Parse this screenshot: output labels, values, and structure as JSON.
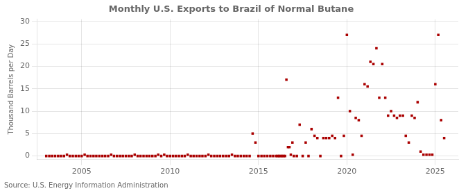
{
  "chart_data": {
    "type": "scatter",
    "title": "Monthly U.S. Exports to Brazil of Normal Butane",
    "ylabel": "Thousand Barrels per Day",
    "source": "Source: U.S. Energy Information Administration",
    "color": "#aa0000",
    "marker": "square",
    "grid": true,
    "xlim": [
      2002.5,
      2026.3
    ],
    "ylim": [
      -0.8,
      30.5
    ],
    "xticks": [
      2005,
      2010,
      2015,
      2020,
      2025
    ],
    "yticks": [
      0,
      5,
      10,
      15,
      20,
      25,
      30
    ],
    "x": [
      2003.0,
      2003.17,
      2003.33,
      2003.5,
      2003.67,
      2003.83,
      2004.0,
      2004.17,
      2004.33,
      2004.5,
      2004.67,
      2004.83,
      2005.0,
      2005.17,
      2005.33,
      2005.5,
      2005.67,
      2005.83,
      2006.0,
      2006.17,
      2006.33,
      2006.5,
      2006.67,
      2006.83,
      2007.0,
      2007.17,
      2007.33,
      2007.5,
      2007.67,
      2007.83,
      2008.0,
      2008.17,
      2008.33,
      2008.5,
      2008.67,
      2008.83,
      2009.0,
      2009.17,
      2009.33,
      2009.5,
      2009.67,
      2009.83,
      2010.0,
      2010.17,
      2010.33,
      2010.5,
      2010.67,
      2010.83,
      2011.0,
      2011.17,
      2011.33,
      2011.5,
      2011.67,
      2011.83,
      2012.0,
      2012.17,
      2012.33,
      2012.5,
      2012.67,
      2012.83,
      2013.0,
      2013.17,
      2013.33,
      2013.5,
      2013.67,
      2013.83,
      2014.0,
      2014.17,
      2014.33,
      2014.5,
      2014.67,
      2014.83,
      2015.0,
      2015.17,
      2015.33,
      2015.5,
      2015.67,
      2015.83,
      2016.0,
      2016.08,
      2016.17,
      2016.25,
      2016.33,
      2016.42,
      2016.5,
      2016.58,
      2016.67,
      2016.75,
      2016.83,
      2016.92,
      2017.0,
      2017.17,
      2017.33,
      2017.5,
      2017.67,
      2017.83,
      2018.0,
      2018.17,
      2018.33,
      2018.5,
      2018.67,
      2018.83,
      2019.0,
      2019.17,
      2019.33,
      2019.5,
      2019.67,
      2019.83,
      2020.0,
      2020.17,
      2020.33,
      2020.5,
      2020.67,
      2020.83,
      2021.0,
      2021.17,
      2021.33,
      2021.5,
      2021.67,
      2021.83,
      2022.0,
      2022.17,
      2022.33,
      2022.5,
      2022.67,
      2022.83,
      2023.0,
      2023.17,
      2023.33,
      2023.5,
      2023.67,
      2023.83,
      2024.0,
      2024.17,
      2024.33,
      2024.5,
      2024.67,
      2024.83,
      2025.0,
      2025.17,
      2025.33,
      2025.5
    ],
    "values": [
      0.0,
      0.0,
      0.0,
      0.0,
      0.0,
      0.0,
      0.0,
      0.3,
      0.0,
      0.0,
      0.0,
      0.0,
      0.0,
      0.3,
      0.0,
      0.0,
      0.0,
      0.0,
      0.0,
      0.0,
      0.0,
      0.0,
      0.3,
      0.0,
      0.0,
      0.0,
      0.0,
      0.0,
      0.0,
      0.0,
      0.3,
      0.0,
      0.0,
      0.0,
      0.0,
      0.0,
      0.0,
      0.0,
      0.3,
      0.0,
      0.3,
      0.0,
      0.0,
      0.0,
      0.0,
      0.0,
      0.0,
      0.0,
      0.3,
      0.0,
      0.0,
      0.0,
      0.0,
      0.0,
      0.0,
      0.3,
      0.0,
      0.0,
      0.0,
      0.0,
      0.0,
      0.0,
      0.0,
      0.3,
      0.0,
      0.0,
      0.0,
      0.0,
      0.0,
      0.0,
      5.0,
      3.0,
      0.0,
      0.0,
      0.0,
      0.0,
      0.0,
      0.0,
      0.0,
      0.0,
      0.0,
      0.0,
      0.0,
      0.0,
      0.0,
      17.0,
      2.0,
      2.0,
      0.3,
      3.0,
      0.0,
      0.0,
      7.0,
      0.0,
      3.0,
      0.0,
      6.0,
      4.5,
      4.0,
      0.0,
      4.0,
      4.0,
      4.0,
      4.5,
      4.0,
      13.0,
      0.0,
      4.5,
      27.0,
      10.0,
      0.3,
      8.5,
      8.0,
      4.5,
      16.0,
      15.5,
      21.0,
      20.5,
      24.0,
      13.0,
      20.5,
      13.0,
      9.0,
      10.0,
      9.0,
      8.5,
      9.0,
      9.0,
      4.5,
      3.0,
      9.0,
      8.5,
      12.0,
      1.0,
      0.3,
      0.3,
      0.3,
      0.3,
      16.0,
      27.0,
      8.0,
      4.0
    ]
  }
}
